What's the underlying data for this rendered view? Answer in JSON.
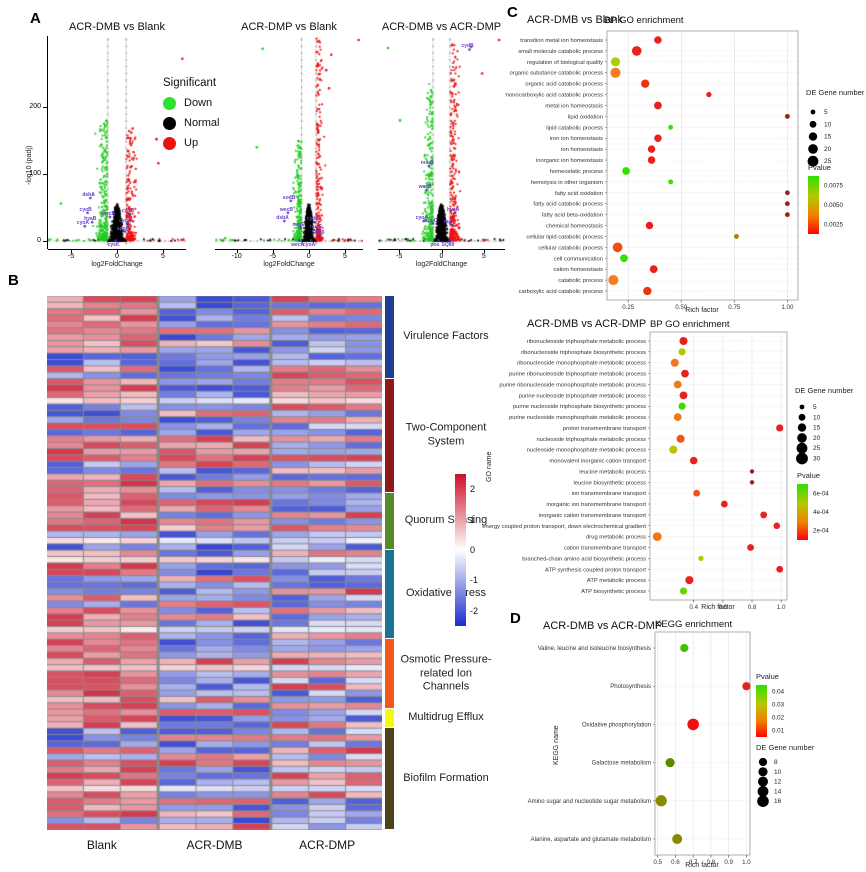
{
  "panels": {
    "a": {
      "label": "A",
      "y_axis_label": "-log10 (padj)",
      "y_ticks": [
        0,
        100,
        200
      ],
      "x_axis_label": "log2FoldChange",
      "legend": {
        "title": "Significant",
        "items": [
          {
            "label": "Down",
            "color": "#2ee02e"
          },
          {
            "label": "Normal",
            "color": "#000000"
          },
          {
            "label": "Up",
            "color": "#ee1111"
          }
        ]
      }
    },
    "b": {
      "label": "B"
    },
    "c": {
      "label": "C"
    },
    "d": {
      "label": "D"
    }
  },
  "chart_data": [
    {
      "id": "volcano-acr-dmb-vs-blank",
      "type": "scatter",
      "subtype": "volcano",
      "title": "ACR-DMB vs Blank",
      "xlabel": "log2FoldChange",
      "ylabel": "-log10 (padj)",
      "xlim": [
        -7.5,
        7.5
      ],
      "ylim": [
        0,
        305
      ],
      "x_ticks": [
        "-5",
        "0",
        "5"
      ],
      "threshold_x": [
        -1,
        1
      ],
      "point_classes": {
        "down": "green",
        "normal": "black",
        "up": "red"
      },
      "simulated_points": {
        "seed": 101,
        "n_normal": 1500,
        "n_down": 300,
        "n_up": 220,
        "down_ymax": 180,
        "up_ymax": 165
      },
      "outliers": [
        {
          "x": 7.1,
          "y": 272,
          "class": "up"
        },
        {
          "x": 4.3,
          "y": 152,
          "class": "up"
        },
        {
          "x": 4.5,
          "y": 116,
          "class": "up"
        },
        {
          "x": 1.7,
          "y": 168,
          "class": "up"
        },
        {
          "x": -6.1,
          "y": 56,
          "class": "down"
        }
      ],
      "gene_labels": [
        {
          "text": "dsbA",
          "x": -2.9,
          "y": 64
        },
        {
          "text": "cyoB",
          "x": -3.2,
          "y": 42
        },
        {
          "text": "hyaB",
          "x": -2.7,
          "y": 28
        },
        {
          "text": "cyoA",
          "x": -3.5,
          "y": 22
        },
        {
          "text": "wecB",
          "x": -0.75,
          "y": 36
        },
        {
          "text": "cydB",
          "x": 1.4,
          "y": 40
        },
        {
          "text": "cydA",
          "x": 1.1,
          "y": 26
        },
        {
          "text": "appB",
          "x": 0.85,
          "y": 14
        },
        {
          "text": "cysK",
          "x": -0.15,
          "y": -11
        }
      ]
    },
    {
      "id": "volcano-acr-dmp-vs-blank",
      "type": "scatter",
      "subtype": "volcano",
      "title": "ACR-DMP vs Blank",
      "xlabel": "log2FoldChange",
      "ylabel": "-log10 (padj)",
      "xlim": [
        -13,
        7.5
      ],
      "ylim": [
        0,
        305
      ],
      "x_ticks": [
        "-10",
        "-5",
        "0",
        "5"
      ],
      "threshold_x": [
        -1,
        1
      ],
      "point_classes": {
        "down": "green",
        "normal": "black",
        "up": "red"
      },
      "simulated_points": {
        "seed": 202,
        "n_normal": 1500,
        "n_down": 280,
        "n_up": 240,
        "down_ymax": 150,
        "up_ymax": 300
      },
      "outliers": [
        {
          "x": -6.4,
          "y": 287,
          "class": "down"
        },
        {
          "x": 6.9,
          "y": 300,
          "class": "up"
        },
        {
          "x": 2.4,
          "y": 255,
          "class": "up"
        },
        {
          "x": 3.1,
          "y": 278,
          "class": "up"
        },
        {
          "x": 2.8,
          "y": 228,
          "class": "up"
        },
        {
          "x": -11.6,
          "y": 4,
          "class": "down"
        },
        {
          "x": -7.2,
          "y": 140,
          "class": "down"
        }
      ],
      "gene_labels": [
        {
          "text": "sodB",
          "x": -2.5,
          "y": 60
        },
        {
          "text": "wecB",
          "x": -2.9,
          "y": 42
        },
        {
          "text": "dsbA",
          "x": -3.4,
          "y": 30
        },
        {
          "text": "nagE",
          "x": -1.15,
          "y": 20
        },
        {
          "text": "cydA",
          "x": 0.85,
          "y": 28
        },
        {
          "text": "nuoF",
          "x": 1.25,
          "y": 16
        },
        {
          "text": "SQ59",
          "x": 1.5,
          "y": 8
        },
        {
          "text": "wecA",
          "x": -1.35,
          "y": -11
        },
        {
          "text": "cyoA",
          "x": 0.3,
          "y": -11
        }
      ]
    },
    {
      "id": "volcano-acr-dmb-vs-acr-dmp",
      "type": "scatter",
      "subtype": "volcano",
      "title": "ACR-DMB vs ACR-DMP",
      "xlabel": "log2FoldChange",
      "ylabel": "-log10 (padj)",
      "xlim": [
        -7.5,
        7.5
      ],
      "ylim": [
        0,
        305
      ],
      "x_ticks": [
        "-5",
        "0",
        "5"
      ],
      "threshold_x": [
        -1,
        1
      ],
      "point_classes": {
        "down": "green",
        "normal": "black",
        "up": "red"
      },
      "simulated_points": {
        "seed": 303,
        "n_normal": 1500,
        "n_down": 320,
        "n_up": 330,
        "down_ymax": 235,
        "up_ymax": 295
      },
      "outliers": [
        {
          "x": -6.3,
          "y": 288,
          "class": "down"
        },
        {
          "x": 3.5,
          "y": 290,
          "class": "up"
        },
        {
          "x": 4.8,
          "y": 250,
          "class": "up"
        },
        {
          "x": 6.8,
          "y": 300,
          "class": "up"
        },
        {
          "x": -4.9,
          "y": 180,
          "class": "down"
        }
      ],
      "gene_labels": [
        {
          "text": "cydB",
          "x": 3.3,
          "y": 286
        },
        {
          "text": "nuoB",
          "x": -1.5,
          "y": 112
        },
        {
          "text": "wecB",
          "x": -1.75,
          "y": 76
        },
        {
          "text": "cyoA",
          "x": -2.1,
          "y": 30
        },
        {
          "text": "appC",
          "x": -1.0,
          "y": 26
        },
        {
          "text": "hyaA",
          "x": 1.6,
          "y": 42
        },
        {
          "text": "nuoF",
          "x": 1.2,
          "y": 24
        },
        {
          "text": "pos",
          "x": -0.35,
          "y": -11
        },
        {
          "text": "SQ59",
          "x": 0.95,
          "y": -11
        }
      ]
    },
    {
      "id": "heatmap-gene-regulation",
      "type": "heatmap",
      "groups": [
        "Blank",
        "ACR-DMB",
        "ACR-DMP"
      ],
      "cols_per_group": 3,
      "categories": [
        {
          "name": "Virulence Factors",
          "rows": 13,
          "color": "#1e3f8f"
        },
        {
          "name": "Two-Component System",
          "rows": 18,
          "color": "#8c1a1a"
        },
        {
          "name": "Quorum Sensing",
          "rows": 9,
          "color": "#5a8a28"
        },
        {
          "name": "Oxidative Stress",
          "rows": 14,
          "color": "#1e7296"
        },
        {
          "name": "Osmotic Pressure-related Ion Channels",
          "rows": 11,
          "color": "#f2571f"
        },
        {
          "name": "Multidrug Efflux",
          "rows": 3,
          "color": "#f7f716"
        },
        {
          "name": "Biofilm Formation",
          "rows": 16,
          "color": "#4a431c"
        }
      ],
      "colorbar_ticks": [
        "2",
        "1",
        "0",
        "-1",
        "-2"
      ],
      "scale": {
        "max": 2.5,
        "min": -2.5,
        "max_color": "#cc1028",
        "mid_color": "#ffffff",
        "min_color": "#1a2cce"
      },
      "simulated_cells": {
        "seed": 77,
        "p_blank_up": 0.72,
        "p_dmb_down": 0.7,
        "p_dmp_down": 0.55
      }
    },
    {
      "id": "go-enrichment-acr-dmb-vs-blank",
      "type": "scatter",
      "subtype": "bubble",
      "title_left": "ACR-DMB vs Blank",
      "title_right": "BP GO enrichment",
      "x_label": "Rich factor",
      "x_ticks": [
        "0.25",
        "0.50",
        "0.75",
        "1.00"
      ],
      "xlim": [
        0.15,
        1.05
      ],
      "size_legend": {
        "title": "DE Gene number",
        "values": [
          5,
          10,
          15,
          20,
          25
        ]
      },
      "pvalue_legend": {
        "title": "Pvalue",
        "ticks": [
          "0.0075",
          "0.0050",
          "0.0025"
        ]
      },
      "terms": [
        {
          "term": "transition metal ion homeostasis",
          "rich_factor": 0.39,
          "gene_number": 12,
          "color": "#e8211d"
        },
        {
          "term": "small molecule catabolic process",
          "rich_factor": 0.29,
          "gene_number": 20,
          "color": "#e8211d"
        },
        {
          "term": "regulation of biological quality",
          "rich_factor": 0.19,
          "gene_number": 18,
          "color": "#a8d000"
        },
        {
          "term": "organic substance catabolic process",
          "rich_factor": 0.19,
          "gene_number": 22,
          "color": "#f57d1f"
        },
        {
          "term": "organic acid catabolic process",
          "rich_factor": 0.33,
          "gene_number": 15,
          "color": "#ee3311"
        },
        {
          "term": "monocarboxylic acid catabolic process",
          "rich_factor": 0.63,
          "gene_number": 6,
          "color": "#e8211d"
        },
        {
          "term": "metal ion homeostasis",
          "rich_factor": 0.39,
          "gene_number": 13,
          "color": "#e8211d"
        },
        {
          "term": "lipid oxidation",
          "rich_factor": 1.0,
          "gene_number": 5,
          "color": "#96251a"
        },
        {
          "term": "lipid catabolic process",
          "rich_factor": 0.45,
          "gene_number": 5,
          "color": "#35e000"
        },
        {
          "term": "iron ion homeostasis",
          "rich_factor": 0.39,
          "gene_number": 12,
          "color": "#e8211d"
        },
        {
          "term": "ion homeostasis",
          "rich_factor": 0.36,
          "gene_number": 12,
          "color": "#e8211d"
        },
        {
          "term": "inorganic ion homeostasis",
          "rich_factor": 0.36,
          "gene_number": 12,
          "color": "#e8211d"
        },
        {
          "term": "homeostatic process",
          "rich_factor": 0.24,
          "gene_number": 13,
          "color": "#35e000"
        },
        {
          "term": "hemolysis in other organism",
          "rich_factor": 0.45,
          "gene_number": 5,
          "color": "#35e000"
        },
        {
          "term": "fatty acid oxidation",
          "rich_factor": 1.0,
          "gene_number": 5,
          "color": "#96251a"
        },
        {
          "term": "fatty acid catabolic process",
          "rich_factor": 1.0,
          "gene_number": 5,
          "color": "#96251a"
        },
        {
          "term": "fatty acid beta-oxidation",
          "rich_factor": 1.0,
          "gene_number": 5,
          "color": "#96251a"
        },
        {
          "term": "chemical homeostasis",
          "rich_factor": 0.35,
          "gene_number": 12,
          "color": "#e8211d"
        },
        {
          "term": "cellular lipid catabolic process",
          "rich_factor": 0.76,
          "gene_number": 5,
          "color": "#b07a00"
        },
        {
          "term": "cellular catabolic process",
          "rich_factor": 0.2,
          "gene_number": 20,
          "color": "#f04c12"
        },
        {
          "term": "cell communication",
          "rich_factor": 0.23,
          "gene_number": 13,
          "color": "#35e000"
        },
        {
          "term": "cation homeostasis",
          "rich_factor": 0.37,
          "gene_number": 13,
          "color": "#e8211d"
        },
        {
          "term": "catabolic process",
          "rich_factor": 0.18,
          "gene_number": 22,
          "color": "#f57d1f"
        },
        {
          "term": "carboxylic acid catabolic process",
          "rich_factor": 0.34,
          "gene_number": 15,
          "color": "#ee3311"
        }
      ]
    },
    {
      "id": "go-enrichment-acr-dmb-vs-acr-dmp",
      "type": "scatter",
      "subtype": "bubble",
      "title_left": "ACR-DMB vs ACR-DMP",
      "title_right": "BP GO enrichment",
      "x_label": "Rich factor",
      "y_axis_title": "GO name",
      "x_ticks": [
        "0.4",
        "0.6",
        "0.8",
        "1.0"
      ],
      "xlim": [
        0.1,
        1.04
      ],
      "size_legend": {
        "title": "DE Gene number",
        "values": [
          5,
          10,
          15,
          20,
          25,
          30
        ]
      },
      "pvalue_legend": {
        "title": "Pvalue",
        "ticks": [
          "6e-04",
          "4e-04",
          "2e-04"
        ]
      },
      "terms": [
        {
          "term": "ribonucleoside triphosphate metabolic process",
          "rich_factor": 0.33,
          "gene_number": 14,
          "color": "#e8211d"
        },
        {
          "term": "ribonucleoside triphosphate biosynthetic process",
          "rich_factor": 0.32,
          "gene_number": 11,
          "color": "#b8c400"
        },
        {
          "term": "ribonucleoside monophosphate metabolic process",
          "rich_factor": 0.27,
          "gene_number": 14,
          "color": "#f07a1a"
        },
        {
          "term": "purine ribonucleoside triphosphate metabolic process",
          "rich_factor": 0.34,
          "gene_number": 13,
          "color": "#e8211d"
        },
        {
          "term": "purine ribonucleoside monophosphate metabolic process",
          "rich_factor": 0.29,
          "gene_number": 13,
          "color": "#f07a1a"
        },
        {
          "term": "purine nucleoside triphosphate metabolic process",
          "rich_factor": 0.33,
          "gene_number": 13,
          "color": "#e8211d"
        },
        {
          "term": "purine nucleoside triphosphate biosynthetic process",
          "rich_factor": 0.32,
          "gene_number": 11,
          "color": "#35e000"
        },
        {
          "term": "purine nucleoside monophosphate metabolic process",
          "rich_factor": 0.29,
          "gene_number": 13,
          "color": "#f07a1a"
        },
        {
          "term": "proton transmembrane transport",
          "rich_factor": 0.99,
          "gene_number": 11,
          "color": "#e8211d"
        },
        {
          "term": "nucleoside triphosphate metabolic process",
          "rich_factor": 0.31,
          "gene_number": 14,
          "color": "#f05518"
        },
        {
          "term": "nucleoside monophosphate metabolic process",
          "rich_factor": 0.26,
          "gene_number": 14,
          "color": "#b8c400"
        },
        {
          "term": "monovalent inorganic cation transport",
          "rich_factor": 0.4,
          "gene_number": 12,
          "color": "#e8211d"
        },
        {
          "term": "leucine metabolic process",
          "rich_factor": 0.8,
          "gene_number": 4,
          "color": "#96251a"
        },
        {
          "term": "leucine biosynthetic process",
          "rich_factor": 0.8,
          "gene_number": 4,
          "color": "#96251a"
        },
        {
          "term": "ion transmembrane transport",
          "rich_factor": 0.42,
          "gene_number": 10,
          "color": "#f05518"
        },
        {
          "term": "inorganic ion transmembrane transport",
          "rich_factor": 0.61,
          "gene_number": 10,
          "color": "#e8211d"
        },
        {
          "term": "inorganic cation transmembrane transport",
          "rich_factor": 0.88,
          "gene_number": 10,
          "color": "#e8211d"
        },
        {
          "term": "energy coupled proton transport, down electrochemical gradient",
          "rich_factor": 0.97,
          "gene_number": 9,
          "color": "#e8211d"
        },
        {
          "term": "drug metabolic process",
          "rich_factor": 0.15,
          "gene_number": 17,
          "color": "#f07a1a"
        },
        {
          "term": "cation transmembrane transport",
          "rich_factor": 0.79,
          "gene_number": 10,
          "color": "#e8211d"
        },
        {
          "term": "branched-chain amino acid biosynthetic process",
          "rich_factor": 0.45,
          "gene_number": 6,
          "color": "#b8c400"
        },
        {
          "term": "ATP synthesis coupled proton transport",
          "rich_factor": 0.99,
          "gene_number": 10,
          "color": "#e8211d"
        },
        {
          "term": "ATP metabolic process",
          "rich_factor": 0.37,
          "gene_number": 14,
          "color": "#e8211d"
        },
        {
          "term": "ATP biosynthetic process",
          "rich_factor": 0.33,
          "gene_number": 11,
          "color": "#6bd400"
        }
      ]
    },
    {
      "id": "kegg-enrichment-acr-dmb-vs-acr-dmp",
      "type": "scatter",
      "subtype": "bubble",
      "title_left": "ACR-DMB vs ACR-DMP",
      "title_right": "KEGG enrichment",
      "x_label": "Rich factor",
      "y_axis_title": "KEGG name",
      "x_ticks": [
        "0.5",
        "0.6",
        "0.7",
        "0.8",
        "0.9",
        "1.0"
      ],
      "xlim": [
        0.485,
        1.02
      ],
      "pvalue_legend": {
        "title": "Pvalue",
        "ticks": [
          "0.04",
          "0.03",
          "0.02",
          "0.01"
        ]
      },
      "size_legend": {
        "title": "DE Gene number",
        "values": [
          8,
          10,
          12,
          14,
          16
        ]
      },
      "terms": [
        {
          "term": "Valine, leucine and isoleucine biosynthesis",
          "rich_factor": 0.65,
          "gene_number": 8,
          "color": "#3ec400"
        },
        {
          "term": "Photosynthesis",
          "rich_factor": 1.0,
          "gene_number": 8,
          "color": "#e8211d"
        },
        {
          "term": "Oxidative phosphorylation",
          "rich_factor": 0.7,
          "gene_number": 16,
          "color": "#ee1111"
        },
        {
          "term": "Galactose metabolism",
          "rich_factor": 0.57,
          "gene_number": 10,
          "color": "#5a8a00"
        },
        {
          "term": "Amino sugar and nucleotide sugar metabolism",
          "rich_factor": 0.52,
          "gene_number": 15,
          "color": "#8a8a00"
        },
        {
          "term": "Alanine, aspartate and glutamate metabolism",
          "rich_factor": 0.61,
          "gene_number": 12,
          "color": "#8a8a00"
        }
      ]
    }
  ]
}
